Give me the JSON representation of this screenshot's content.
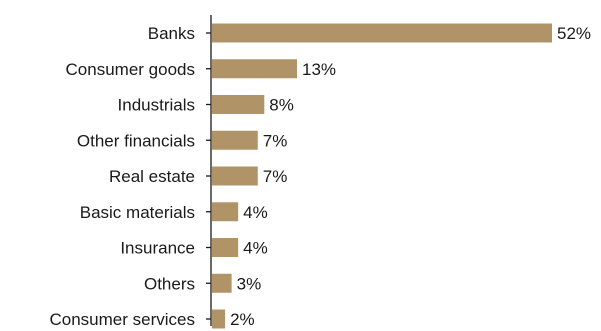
{
  "chart_data": {
    "type": "bar",
    "orientation": "horizontal",
    "categories": [
      "Banks",
      "Consumer goods",
      "Industrials",
      "Other financials",
      "Real estate",
      "Basic materials",
      "Insurance",
      "Others",
      "Consumer services"
    ],
    "values": [
      52,
      13,
      8,
      7,
      7,
      4,
      4,
      3,
      2
    ],
    "value_labels": [
      "52%",
      "13%",
      "8%",
      "7%",
      "7%",
      "4%",
      "4%",
      "3%",
      "2%"
    ],
    "unit": "%",
    "title": "",
    "xlabel": "",
    "ylabel": "",
    "xlim": [
      0,
      52
    ],
    "grid": false,
    "legend": "none",
    "bar_color": "#b09468",
    "axis_color": "#1a1a1a"
  }
}
